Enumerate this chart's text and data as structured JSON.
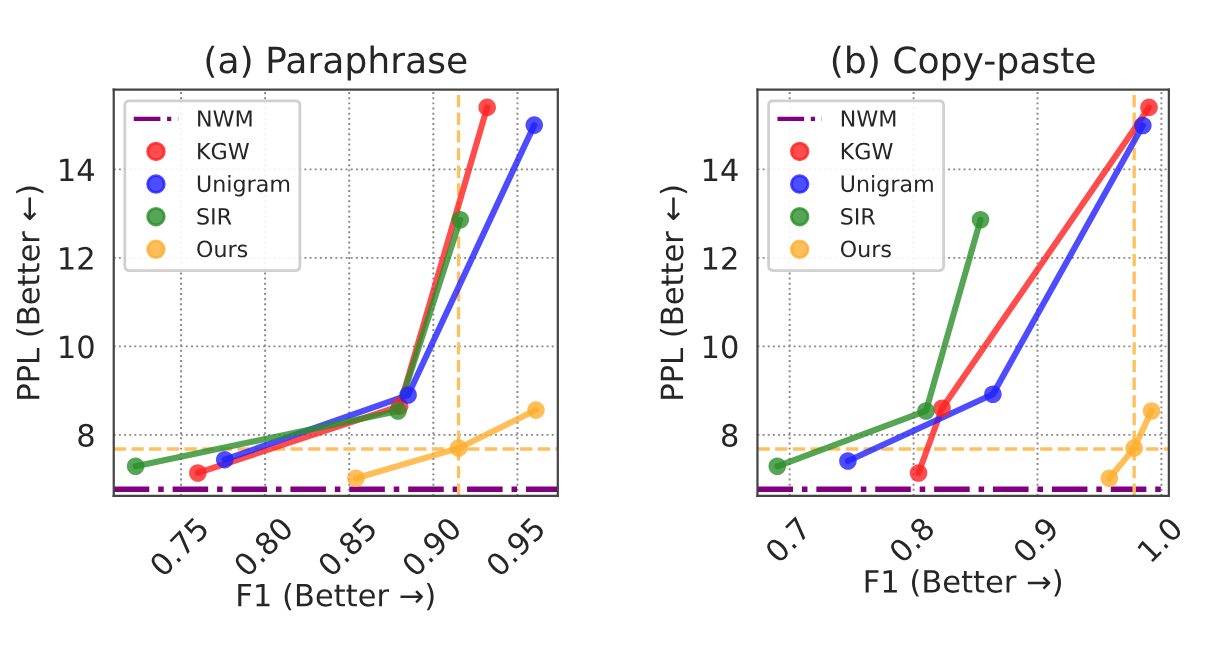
{
  "chart_data": [
    {
      "type": "line",
      "title": "(a) Paraphrase",
      "xlabel": "F1 (Better →)",
      "ylabel": "PPL (Better ←)",
      "marker": "circle",
      "grid": true,
      "legend": "top left",
      "xlim": [
        0.71,
        0.974
      ],
      "xticks": [
        0.75,
        {
          "value": 0.8,
          "label": "0.80"
        },
        0.85,
        {
          "value": 0.9,
          "label": "0.90"
        },
        0.95
      ],
      "ylim": [
        6.62,
        15.8
      ],
      "yticks": [
        8,
        10,
        12,
        14
      ],
      "ref_lines": [
        {
          "axis": "y",
          "value": 6.77,
          "label": "NWM",
          "color": "#800080",
          "line_style": "dashdot"
        },
        {
          "axis": "x",
          "value": 0.915,
          "color": "#ffc060",
          "line_style": "dashed"
        },
        {
          "axis": "y",
          "value": 7.68,
          "color": "#ffc060",
          "line_style": "dashed"
        }
      ],
      "series": [
        {
          "name": "KGW",
          "color": "#ff2020",
          "x": [
            0.76,
            0.88,
            0.932
          ],
          "values": [
            7.14,
            8.65,
            15.4
          ]
        },
        {
          "name": "Unigram",
          "color": "#2020ff",
          "x": [
            0.776,
            0.885,
            0.96
          ],
          "values": [
            7.44,
            8.9,
            15.0
          ]
        },
        {
          "name": "SIR",
          "color": "#2a8f2a",
          "x": [
            0.723,
            0.879,
            0.916
          ],
          "values": [
            7.29,
            8.54,
            12.86
          ]
        },
        {
          "name": "Ours",
          "color": "#ffae2e",
          "x": [
            0.854,
            0.915,
            0.961
          ],
          "values": [
            7.02,
            7.7,
            8.56
          ]
        }
      ]
    },
    {
      "type": "line",
      "title": "(b) Copy-paste",
      "xlabel": "F1 (Better →)",
      "ylabel": "PPL (Better ←)",
      "marker": "circle",
      "grid": true,
      "legend": "top left",
      "xlim": [
        0.674,
        1.006
      ],
      "xticks": [
        0.7,
        0.8,
        0.9,
        {
          "value": 1.0,
          "label": "1.0"
        }
      ],
      "ylim": [
        6.62,
        15.8
      ],
      "yticks": [
        8,
        10,
        12,
        14
      ],
      "ref_lines": [
        {
          "axis": "y",
          "value": 6.77,
          "label": "NWM",
          "color": "#800080",
          "line_style": "dashdot"
        },
        {
          "axis": "x",
          "value": 0.978,
          "color": "#ffc060",
          "line_style": "dashed"
        },
        {
          "axis": "y",
          "value": 7.68,
          "color": "#ffc060",
          "line_style": "dashed"
        }
      ],
      "series": [
        {
          "name": "KGW",
          "color": "#ff2020",
          "x": [
            0.804,
            0.823,
            0.99
          ],
          "values": [
            7.14,
            8.6,
            15.4
          ]
        },
        {
          "name": "Unigram",
          "color": "#2020ff",
          "x": [
            0.747,
            0.864,
            0.985
          ],
          "values": [
            7.41,
            8.92,
            14.99
          ]
        },
        {
          "name": "SIR",
          "color": "#2a8f2a",
          "x": [
            0.69,
            0.81,
            0.854
          ],
          "values": [
            7.29,
            8.54,
            12.86
          ]
        },
        {
          "name": "Ours",
          "color": "#ffae2e",
          "x": [
            0.958,
            0.978,
            0.992
          ],
          "values": [
            7.02,
            7.7,
            8.54
          ]
        }
      ]
    }
  ]
}
